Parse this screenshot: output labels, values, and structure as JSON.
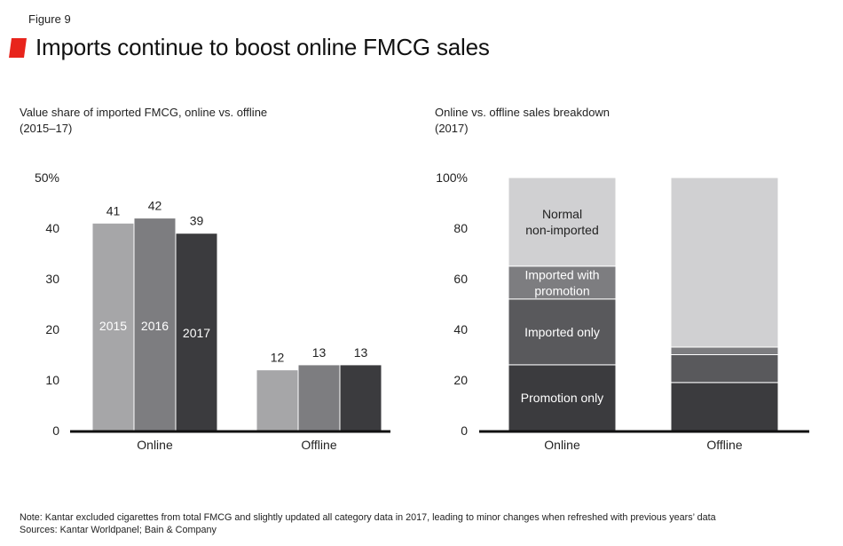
{
  "header": {
    "figure_label": "Figure 9",
    "title": "Imports continue to boost online FMCG sales",
    "accent_color": "#e8241c"
  },
  "chart_data": [
    {
      "type": "bar",
      "title": "Value share of imported FMCG, online vs. offline",
      "subtitle": "(2015–17)",
      "categories": [
        "Online",
        "Offline"
      ],
      "series": [
        {
          "name": "2015",
          "values": [
            41,
            12
          ],
          "color": "#a6a6a8"
        },
        {
          "name": "2016",
          "values": [
            42,
            13
          ],
          "color": "#7d7d80"
        },
        {
          "name": "2017",
          "values": [
            39,
            13
          ],
          "color": "#3b3b3e"
        }
      ],
      "data_labels": [
        [
          "41",
          "42",
          "39"
        ],
        [
          "12",
          "13",
          "13"
        ]
      ],
      "ylim": [
        0,
        50
      ],
      "yticks": [
        0,
        10,
        20,
        30,
        40,
        50
      ],
      "ytick_labels": [
        "0",
        "10",
        "20",
        "30",
        "40",
        "50%"
      ],
      "xlabel": "",
      "ylabel": "",
      "grid": false,
      "legend": "in-bar labels"
    },
    {
      "type": "bar",
      "stacked": true,
      "title": "Online vs. offline sales breakdown",
      "subtitle": "(2017)",
      "categories": [
        "Online",
        "Offline"
      ],
      "series": [
        {
          "name": "Promotion only",
          "values": [
            26,
            19
          ],
          "color": "#3b3b3e"
        },
        {
          "name": "Imported only",
          "values": [
            26,
            11
          ],
          "color": "#59595c"
        },
        {
          "name": "Imported with promotion",
          "values": [
            13,
            3
          ],
          "color": "#7d7d80"
        },
        {
          "name": "Normal non-imported",
          "values": [
            35,
            67
          ],
          "color": "#d0d0d2"
        }
      ],
      "ylim": [
        0,
        100
      ],
      "yticks": [
        0,
        20,
        40,
        60,
        80,
        100
      ],
      "ytick_labels": [
        "0",
        "20",
        "40",
        "60",
        "80",
        "100%"
      ],
      "xlabel": "",
      "ylabel": "",
      "grid": false,
      "legend": "in-bar labels"
    }
  ],
  "footer": {
    "note": "Note: Kantar excluded cigarettes from total FMCG and slightly updated all category data in 2017, leading to minor changes when refreshed with previous years’ data",
    "sources": "Sources: Kantar Worldpanel; Bain & Company"
  }
}
